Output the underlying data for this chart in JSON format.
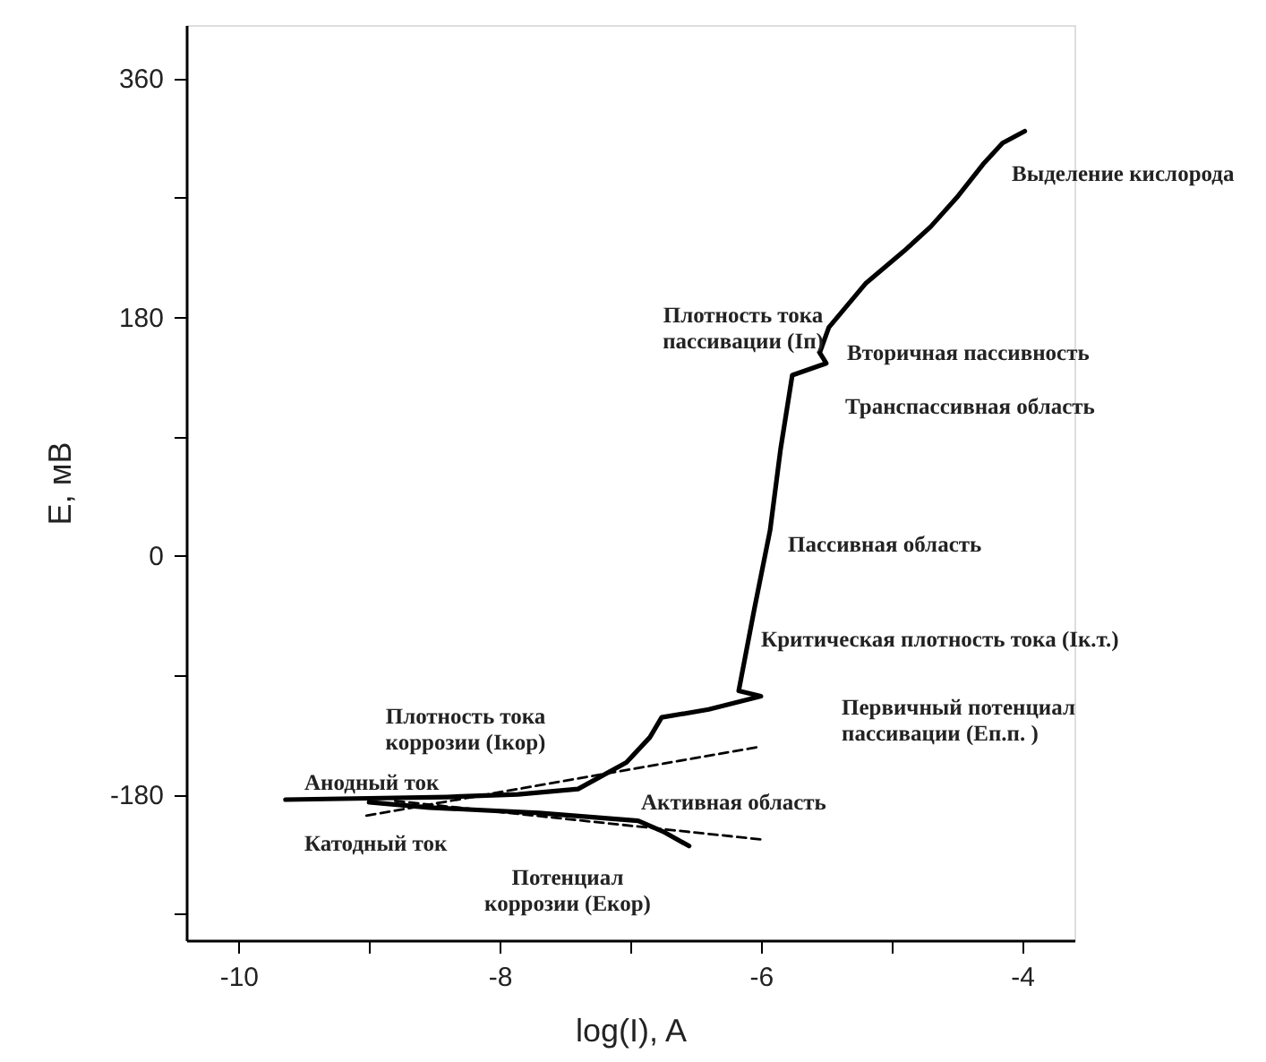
{
  "chart_data": {
    "type": "line",
    "xlabel": "log(I), A",
    "ylabel": "E, мВ",
    "xlim": [
      -10.4,
      -3.6
    ],
    "ylim": [
      -290,
      400
    ],
    "xticks": [
      -10,
      {
        "value": -9,
        "label": null
      },
      -8,
      {
        "value": -7,
        "label": null
      },
      -6,
      {
        "value": -5,
        "label": null
      },
      -4
    ],
    "yticks": [
      {
        "value": -270,
        "label": null
      },
      -180,
      {
        "value": -90,
        "label": null
      },
      0,
      {
        "value": 90,
        "label": null
      },
      180,
      {
        "value": 270,
        "label": null
      },
      360
    ],
    "grid": false,
    "marker": "none",
    "series": [
      {
        "color": "#000000",
        "line_style": "solid",
        "x": [
          -9.64,
          -9.0,
          -8.4,
          -7.86,
          -7.4,
          -7.03,
          -6.85,
          -6.76,
          -6.4,
          -6.0,
          -6.17,
          -6.05,
          -5.93,
          -5.85,
          -5.76,
          -5.5,
          -5.55,
          -5.48,
          -5.2,
          -4.9,
          -4.7,
          -4.5,
          -4.3,
          -4.15,
          -3.98
        ],
        "values": [
          -184,
          -183,
          -182,
          -180,
          -176,
          -156,
          -137,
          -122,
          -116,
          -106,
          -102,
          -40,
          19,
          80,
          136,
          145,
          153,
          172,
          205,
          230,
          248,
          270,
          295,
          311,
          320
        ]
      },
      {
        "color": "#000000",
        "line_style": "solid",
        "x": [
          -9.0,
          -8.54,
          -7.7,
          -6.94,
          -6.75,
          -6.55
        ],
        "values": [
          -186,
          -190,
          -194,
          -200,
          -208,
          -219
        ]
      },
      {
        "color": "#000000",
        "line_style": "dashed",
        "x": [
          -9.02,
          -6.0
        ],
        "values": [
          -196,
          -144
        ]
      },
      {
        "color": "#000000",
        "line_style": "dashed",
        "x": [
          -8.8,
          -6.0
        ],
        "values": [
          -185,
          -214
        ]
      }
    ],
    "annotations": [
      "Выделение кислорода",
      "Плотность тока\nпассивации (Iп)",
      "Вторичная пассивность",
      "Транспассивная область",
      "Пассивная область",
      "Критическая плотность тока (Iк.т.)",
      "Первичный потенциал\nпассивации (Еп.п. )",
      "Плотность тока\nкоррозии (Iкор)",
      "Анодный ток",
      "Катодный ток",
      "Активная область",
      "Потенциал\nкоррозии (Екор)"
    ]
  }
}
